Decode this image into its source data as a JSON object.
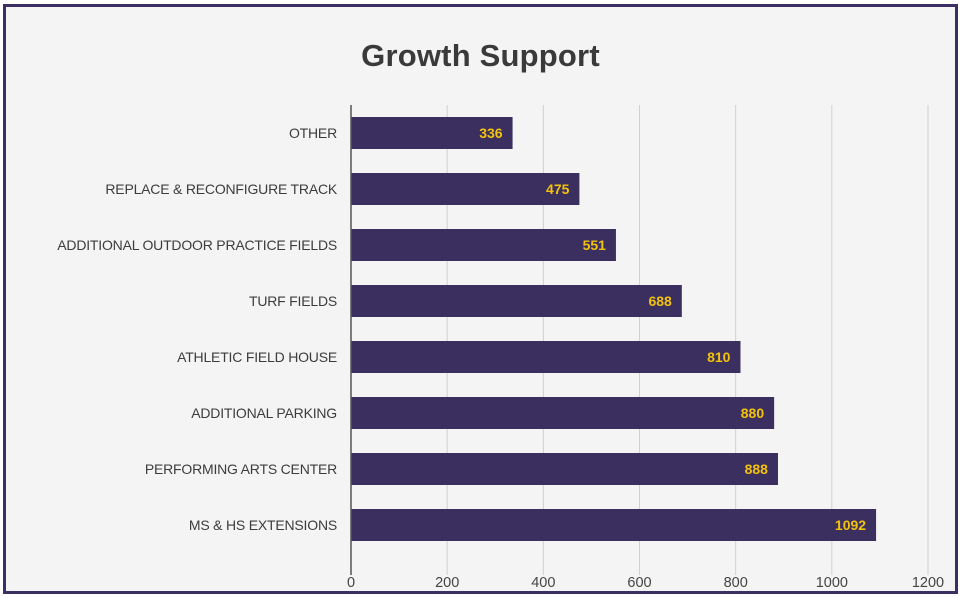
{
  "chart_data": {
    "type": "bar",
    "orientation": "horizontal",
    "title": "Growth Support",
    "categories": [
      "OTHER",
      "REPLACE & RECONFIGURE TRACK",
      "ADDITIONAL OUTDOOR PRACTICE FIELDS",
      "TURF FIELDS",
      "ATHLETIC FIELD HOUSE",
      "ADDITIONAL PARKING",
      "PERFORMING ARTS CENTER",
      "MS & HS EXTENSIONS"
    ],
    "values": [
      336,
      475,
      551,
      688,
      810,
      880,
      888,
      1092
    ],
    "data_labels": [
      "336",
      "475",
      "551",
      "688",
      "810",
      "880",
      "888",
      "1092"
    ],
    "xlim": [
      0,
      1200
    ],
    "x_ticks": [
      "0",
      "200",
      "400",
      "600",
      "800",
      "1000",
      "1200"
    ],
    "x_tick_values": [
      0,
      200,
      400,
      600,
      800,
      1000,
      1200
    ],
    "xlabel": "",
    "ylabel": "",
    "grid": "vertical",
    "legend": "none",
    "colors": {
      "bar": "#3a2f5f",
      "data_label": "#f3c20d",
      "gridline": "#d0d0d0",
      "axis": "#555555",
      "frame": "#3b2f63"
    }
  }
}
